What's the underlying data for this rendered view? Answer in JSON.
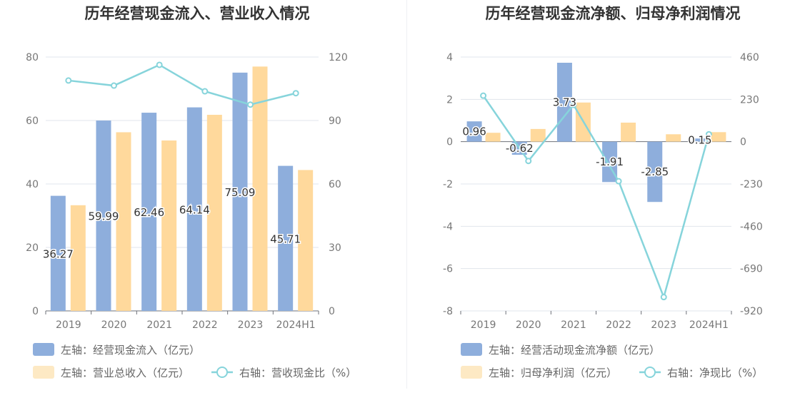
{
  "colors": {
    "bar_primary": "#8eaedc",
    "bar_secondary": "#ffd99c",
    "legend_secondary": "#fde9c4",
    "line": "#86d4db",
    "grid": "#e1e4ec",
    "axis_text": "#777777",
    "title_text": "#333333",
    "legend_text": "#666666",
    "label_text": "#333333"
  },
  "chart_data": [
    {
      "type": "bar",
      "title": "历年经营现金流入、营业收入情况",
      "categories": [
        "2019",
        "2020",
        "2021",
        "2022",
        "2023",
        "2024H1"
      ],
      "left_axis": {
        "min": 0,
        "max": 80,
        "ticks": [
          "0",
          "20",
          "40",
          "60",
          "80"
        ]
      },
      "right_axis": {
        "min": 0,
        "max": 120,
        "ticks": [
          "0",
          "30",
          "60",
          "90",
          "120"
        ]
      },
      "series": [
        {
          "name": "左轴：经营现金流入（亿元）",
          "type": "bar",
          "axis": "left",
          "values": [
            36.27,
            59.99,
            62.46,
            64.14,
            75.09,
            45.71
          ],
          "labels": [
            "36.27",
            "59.99",
            "62.46",
            "64.14",
            "75.09",
            "45.71"
          ]
        },
        {
          "name": "左轴：营业总收入（亿元）",
          "type": "bar",
          "axis": "left",
          "values": [
            33.3,
            56.3,
            53.7,
            61.8,
            77.0,
            44.4
          ]
        },
        {
          "name": "右轴：营收现金比（%）",
          "type": "line",
          "axis": "right",
          "values": [
            108.9,
            106.5,
            116.3,
            103.8,
            97.5,
            102.9
          ]
        }
      ]
    },
    {
      "type": "bar",
      "title": "历年经营现金流净额、归母净利润情况",
      "categories": [
        "2019",
        "2020",
        "2021",
        "2022",
        "2023",
        "2024H1"
      ],
      "left_axis": {
        "min": -8,
        "max": 4,
        "ticks": [
          "-8",
          "-6",
          "-4",
          "-2",
          "0",
          "2",
          "4"
        ]
      },
      "right_axis": {
        "min": -920,
        "max": 460,
        "ticks": [
          "-920",
          "-690",
          "-460",
          "-230",
          "0",
          "230",
          "460"
        ]
      },
      "series": [
        {
          "name": "左轴：经营活动现金流净额（亿元）",
          "type": "bar",
          "axis": "left",
          "values": [
            0.96,
            -0.62,
            3.73,
            -1.91,
            -2.85,
            0.15
          ],
          "labels": [
            "0.96",
            "-0.62",
            "3.73",
            "-1.91",
            "-2.85",
            "0.15"
          ]
        },
        {
          "name": "左轴：归母净利润（亿元）",
          "type": "bar",
          "axis": "left",
          "values": [
            0.42,
            0.6,
            1.85,
            0.9,
            0.35,
            0.45
          ]
        },
        {
          "name": "右轴：净现比（%）",
          "type": "line",
          "axis": "right",
          "values": [
            250,
            -105,
            200,
            -215,
            -845,
            40
          ]
        }
      ]
    }
  ]
}
